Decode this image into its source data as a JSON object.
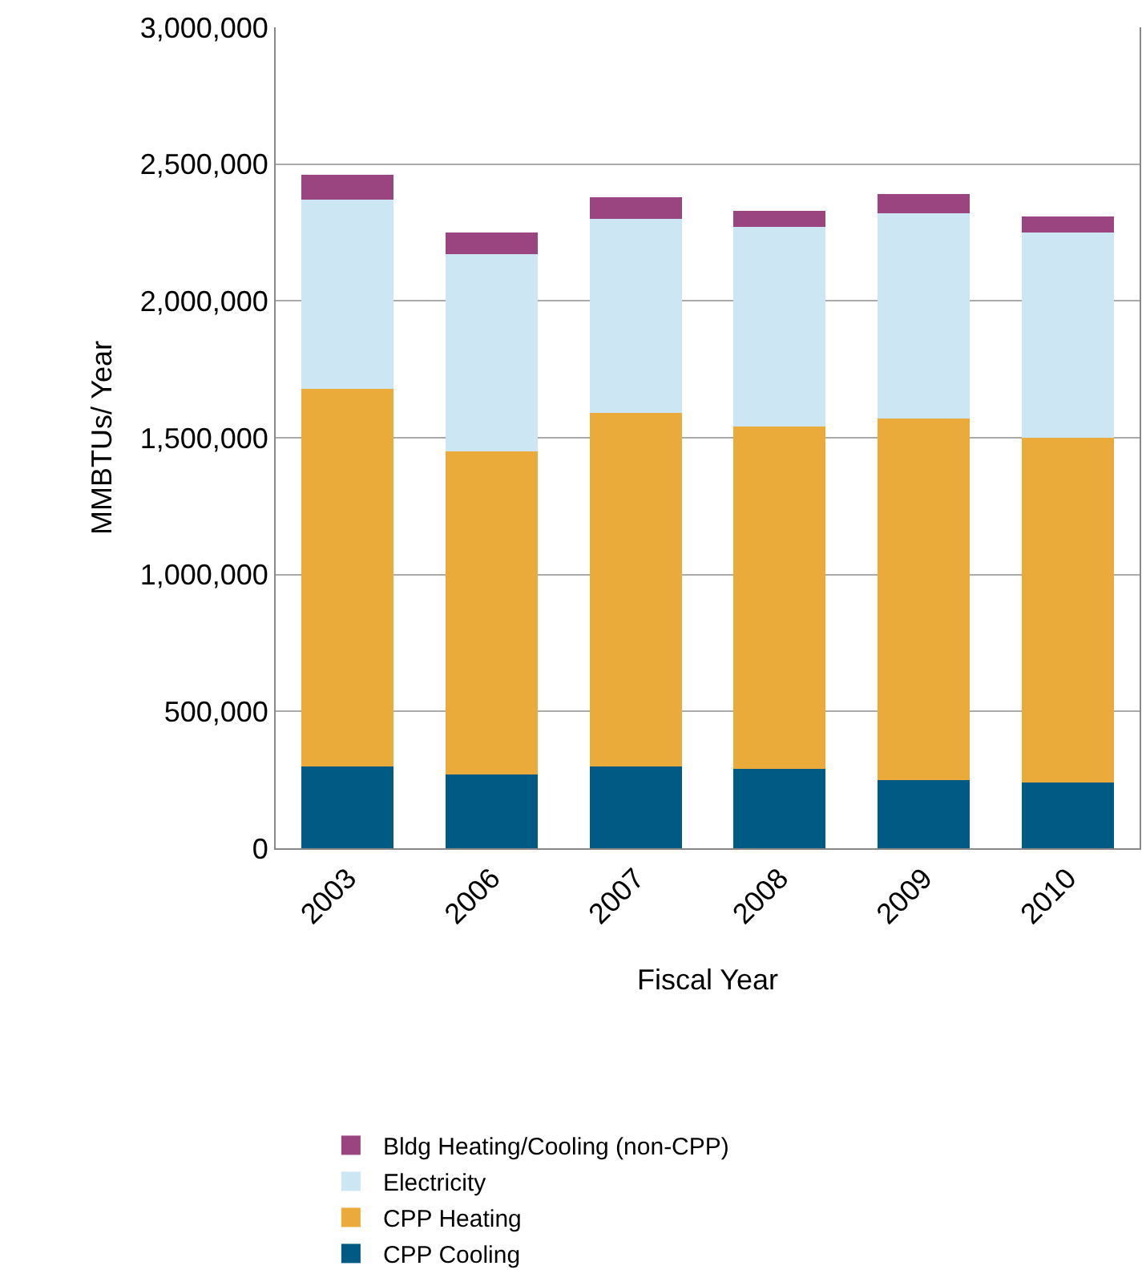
{
  "chart_data": {
    "type": "bar",
    "stacked": true,
    "xlabel": "Fiscal Year",
    "ylabel": "MMBTUs/ Year",
    "categories": [
      "2003",
      "2006",
      "2007",
      "2008",
      "2009",
      "2010"
    ],
    "series": [
      {
        "name": "CPP Cooling",
        "color": "#005a83",
        "values": [
          300000,
          270000,
          300000,
          290000,
          250000,
          240000
        ]
      },
      {
        "name": "CPP Heating",
        "color": "#eaab3b",
        "values": [
          1380000,
          1180000,
          1290000,
          1250000,
          1320000,
          1260000
        ]
      },
      {
        "name": "Electricity",
        "color": "#cde6f3",
        "values": [
          690000,
          720000,
          710000,
          730000,
          750000,
          750000
        ]
      },
      {
        "name": "Bldg Heating/Cooling (non-CPP)",
        "color": "#9b4580",
        "values": [
          90000,
          80000,
          80000,
          60000,
          70000,
          60000
        ]
      }
    ],
    "ylim": [
      0,
      3000000
    ],
    "yticks": [
      0,
      {
        "value": 500000,
        "label": "500,000"
      },
      {
        "value": 1000000,
        "label": "1,000,000"
      },
      {
        "value": 1500000,
        "label": "1,500,000"
      },
      {
        "value": 2000000,
        "label": "2,000,000"
      },
      {
        "value": 2500000,
        "label": "2,500,000"
      },
      {
        "value": 3000000,
        "label": "3,000,000"
      }
    ],
    "grid": "y",
    "legend": "bottom"
  }
}
